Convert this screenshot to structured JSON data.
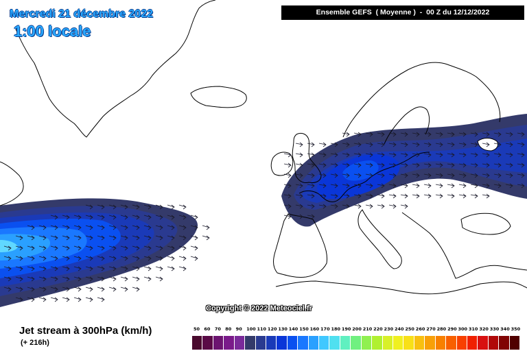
{
  "header": {
    "date": "Mercredi 21 décembre 2022",
    "local_time": "1:00 locale",
    "run_info": "Ensemble GEFS  ( Moyenne )  -  00 Z du 12/12/2022"
  },
  "footer": {
    "parameter": "Jet stream à 300hPa (km/h)",
    "lead_time": "(+ 216h)",
    "copyright": "Copyright © 2022 Meteociel.fr"
  },
  "map_style": {
    "background": "#ffffff",
    "coastline": "#000000",
    "arrow": "#1a1a2a"
  },
  "legend": {
    "unit": "km/h",
    "ticks": [
      "50",
      "60",
      "70",
      "80",
      "90",
      "100",
      "110",
      "120",
      "130",
      "140",
      "150",
      "160",
      "170",
      "180",
      "190",
      "200",
      "210",
      "220",
      "230",
      "240",
      "250",
      "260",
      "270",
      "280",
      "290",
      "300",
      "310",
      "320",
      "330",
      "340",
      "350"
    ],
    "colors": [
      "#4a0a2e",
      "#5a0a46",
      "#6c1470",
      "#7a1a8a",
      "#7a2a9a",
      "#343a6a",
      "#2a3a90",
      "#1a3ab8",
      "#0a36d8",
      "#0a50f0",
      "#1a78ff",
      "#2aa0ff",
      "#40c8ff",
      "#50e0f0",
      "#60f0c0",
      "#70f080",
      "#90f050",
      "#b0f030",
      "#d8f028",
      "#f0f020",
      "#f8e018",
      "#f8c010",
      "#f8a008",
      "#f88000",
      "#f86000",
      "#f84000",
      "#f02000",
      "#d81010",
      "#b00808",
      "#800404",
      "#500000"
    ]
  }
}
